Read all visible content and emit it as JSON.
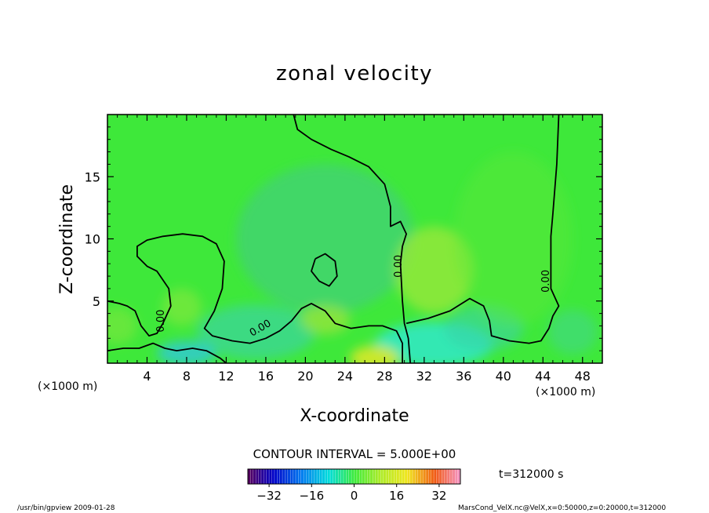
{
  "chart_data": {
    "type": "heatmap",
    "title": "zonal velocity",
    "xlabel": "X-coordinate",
    "ylabel": "Z-coordinate",
    "xunit_left": "(×1000 m)",
    "xunit_right": "(×1000 m)",
    "xlim": [
      0,
      50
    ],
    "ylim": [
      0,
      20
    ],
    "xticks": [
      4,
      8,
      12,
      16,
      20,
      24,
      28,
      32,
      36,
      40,
      44,
      48
    ],
    "yticks": [
      5,
      10,
      15
    ],
    "contour_interval_label": "CONTOUR INTERVAL = 5.000E+00",
    "zero_contour_label": "0.00",
    "time_label": "t=312000 s",
    "colorbar": {
      "vmin": -40,
      "vmax": 40,
      "ticks": [
        -32,
        -16,
        0,
        16,
        32
      ]
    },
    "zero_contours": [
      [
        [
          0,
          5.0
        ],
        [
          1.2,
          4.8
        ],
        [
          2.0,
          4.6
        ],
        [
          2.8,
          4.2
        ],
        [
          3.4,
          3.0
        ],
        [
          4.2,
          2.2
        ],
        [
          5.0,
          2.4
        ],
        [
          5.6,
          3.2
        ],
        [
          6.4,
          4.6
        ],
        [
          6.2,
          6.0
        ],
        [
          5.0,
          7.4
        ],
        [
          4.0,
          7.8
        ],
        [
          3.0,
          8.6
        ],
        [
          3.0,
          9.4
        ],
        [
          4.0,
          9.9
        ],
        [
          5.6,
          10.2
        ],
        [
          7.6,
          10.4
        ],
        [
          9.6,
          10.2
        ],
        [
          11.0,
          9.6
        ],
        [
          11.8,
          8.2
        ],
        [
          11.6,
          6.0
        ],
        [
          10.8,
          4.2
        ],
        [
          9.8,
          2.8
        ],
        [
          10.6,
          2.2
        ],
        [
          12.6,
          1.8
        ],
        [
          14.4,
          1.6
        ],
        [
          16.0,
          2.0
        ],
        [
          17.4,
          2.6
        ],
        [
          18.6,
          3.4
        ],
        [
          19.6,
          4.4
        ],
        [
          20.6,
          4.8
        ],
        [
          22.0,
          4.2
        ],
        [
          23.0,
          3.2
        ],
        [
          24.6,
          2.8
        ],
        [
          26.4,
          3.0
        ],
        [
          27.8,
          3.0
        ],
        [
          29.2,
          2.6
        ],
        [
          29.8,
          1.6
        ],
        [
          29.8,
          0.0
        ]
      ],
      [
        [
          0,
          1.0
        ],
        [
          1.6,
          1.2
        ],
        [
          3.2,
          1.2
        ],
        [
          4.6,
          1.6
        ],
        [
          5.8,
          1.2
        ],
        [
          7.0,
          1.0
        ],
        [
          8.6,
          1.2
        ],
        [
          10.0,
          1.0
        ],
        [
          11.4,
          0.4
        ],
        [
          12.0,
          0.0
        ]
      ],
      [
        [
          21.0,
          8.4
        ],
        [
          20.6,
          7.4
        ],
        [
          21.4,
          6.6
        ],
        [
          22.4,
          6.2
        ],
        [
          23.2,
          7.0
        ],
        [
          23.0,
          8.2
        ],
        [
          22.0,
          8.8
        ],
        [
          21.0,
          8.4
        ]
      ],
      [
        [
          18.8,
          20.0
        ],
        [
          19.2,
          18.8
        ],
        [
          20.6,
          18.0
        ],
        [
          22.6,
          17.2
        ],
        [
          24.4,
          16.6
        ],
        [
          26.4,
          15.8
        ],
        [
          28.0,
          14.4
        ],
        [
          28.6,
          12.6
        ],
        [
          28.6,
          11.0
        ],
        [
          29.6,
          11.4
        ],
        [
          30.2,
          10.4
        ],
        [
          29.8,
          9.4
        ],
        [
          29.6,
          8.0
        ],
        [
          29.8,
          5.0
        ],
        [
          30.0,
          3.2
        ],
        [
          30.4,
          2.0
        ],
        [
          30.6,
          0.0
        ]
      ],
      [
        [
          30.2,
          3.2
        ],
        [
          32.4,
          3.6
        ],
        [
          34.6,
          4.2
        ],
        [
          36.6,
          5.2
        ],
        [
          38.0,
          4.6
        ],
        [
          38.6,
          3.4
        ],
        [
          38.8,
          2.2
        ],
        [
          40.6,
          1.8
        ],
        [
          42.6,
          1.6
        ],
        [
          43.8,
          1.8
        ],
        [
          44.6,
          2.8
        ],
        [
          45.0,
          3.8
        ],
        [
          45.6,
          4.6
        ],
        [
          44.8,
          6.0
        ],
        [
          44.8,
          7.8
        ],
        [
          44.8,
          10.2
        ],
        [
          45.0,
          12.0
        ],
        [
          45.2,
          14.0
        ],
        [
          45.4,
          16.0
        ],
        [
          45.5,
          18.0
        ],
        [
          45.6,
          20.0
        ]
      ]
    ]
  },
  "footer": {
    "left_text": "/usr/bin/gpview  2009-01-28",
    "right_text": "MarsCond_VelX.nc@VelX,x=0:50000,z=0:20000,t=312000"
  }
}
